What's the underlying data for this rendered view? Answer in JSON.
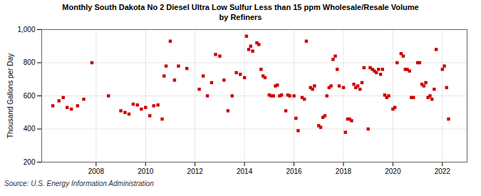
{
  "chart_data": {
    "type": "scatter",
    "title": "Monthly South Dakota No 2 Diesel Ultra Low Sulfur Less than 15 ppm Wholesale/Resale Volume\nby  Refiners",
    "ylabel": "Thousand Gallons per Day",
    "source": "Source: U.S. Energy Information Administration",
    "color": "#cc0000",
    "marker": "square",
    "grid": true,
    "xlim": [
      2005.8,
      2023.0
    ],
    "xticks": [
      2008,
      2010,
      2012,
      2014,
      2016,
      2018,
      2020,
      2022
    ],
    "ylim": [
      200,
      1000
    ],
    "yticks": [
      200,
      400,
      600,
      800,
      {
        "value": 1000,
        "label": "1,000"
      }
    ],
    "x": [
      2006.25,
      2006.5,
      2006.67,
      2006.83,
      2007.0,
      2007.25,
      2007.5,
      2007.83,
      2008.5,
      2009.0,
      2009.17,
      2009.33,
      2009.5,
      2009.67,
      2009.83,
      2010.0,
      2010.17,
      2010.33,
      2010.5,
      2010.67,
      2010.75,
      2010.83,
      2011.0,
      2011.17,
      2011.33,
      2011.67,
      2012.17,
      2012.33,
      2012.5,
      2012.67,
      2012.83,
      2013.0,
      2013.17,
      2013.33,
      2013.5,
      2013.67,
      2013.83,
      2014.0,
      2014.08,
      2014.17,
      2014.25,
      2014.33,
      2014.5,
      2014.58,
      2014.67,
      2014.75,
      2014.83,
      2015.0,
      2015.08,
      2015.17,
      2015.25,
      2015.33,
      2015.42,
      2015.5,
      2015.67,
      2015.75,
      2015.83,
      2016.0,
      2016.08,
      2016.17,
      2016.33,
      2016.42,
      2016.5,
      2016.67,
      2016.75,
      2016.83,
      2017.0,
      2017.08,
      2017.17,
      2017.25,
      2017.33,
      2017.42,
      2017.5,
      2017.58,
      2017.67,
      2017.75,
      2017.83,
      2018.0,
      2018.08,
      2018.17,
      2018.25,
      2018.33,
      2018.42,
      2018.5,
      2018.58,
      2018.67,
      2018.75,
      2018.83,
      2019.0,
      2019.08,
      2019.17,
      2019.25,
      2019.33,
      2019.42,
      2019.5,
      2019.58,
      2019.67,
      2019.75,
      2019.83,
      2020.0,
      2020.08,
      2020.17,
      2020.33,
      2020.42,
      2020.5,
      2020.58,
      2020.67,
      2020.75,
      2020.83,
      2021.0,
      2021.08,
      2021.17,
      2021.25,
      2021.33,
      2021.42,
      2021.5,
      2021.58,
      2021.67,
      2021.75,
      2022.0,
      2022.08,
      2022.17,
      2022.25
    ],
    "values": [
      540,
      570,
      590,
      530,
      520,
      540,
      580,
      800,
      600,
      510,
      500,
      490,
      550,
      545,
      520,
      530,
      480,
      540,
      545,
      460,
      720,
      780,
      930,
      695,
      780,
      765,
      640,
      720,
      600,
      680,
      850,
      840,
      695,
      510,
      600,
      740,
      730,
      710,
      960,
      880,
      900,
      870,
      920,
      910,
      760,
      720,
      710,
      605,
      600,
      600,
      660,
      665,
      600,
      605,
      510,
      605,
      600,
      600,
      465,
      390,
      590,
      580,
      930,
      650,
      640,
      660,
      420,
      410,
      470,
      480,
      600,
      650,
      660,
      820,
      840,
      760,
      660,
      650,
      380,
      460,
      460,
      450,
      670,
      650,
      660,
      640,
      680,
      770,
      400,
      770,
      760,
      750,
      740,
      760,
      730,
      760,
      605,
      590,
      600,
      520,
      530,
      800,
      855,
      840,
      760,
      760,
      750,
      590,
      590,
      800,
      800,
      670,
      660,
      680,
      590,
      600,
      580,
      640,
      880,
      760,
      780,
      650,
      460
    ]
  }
}
